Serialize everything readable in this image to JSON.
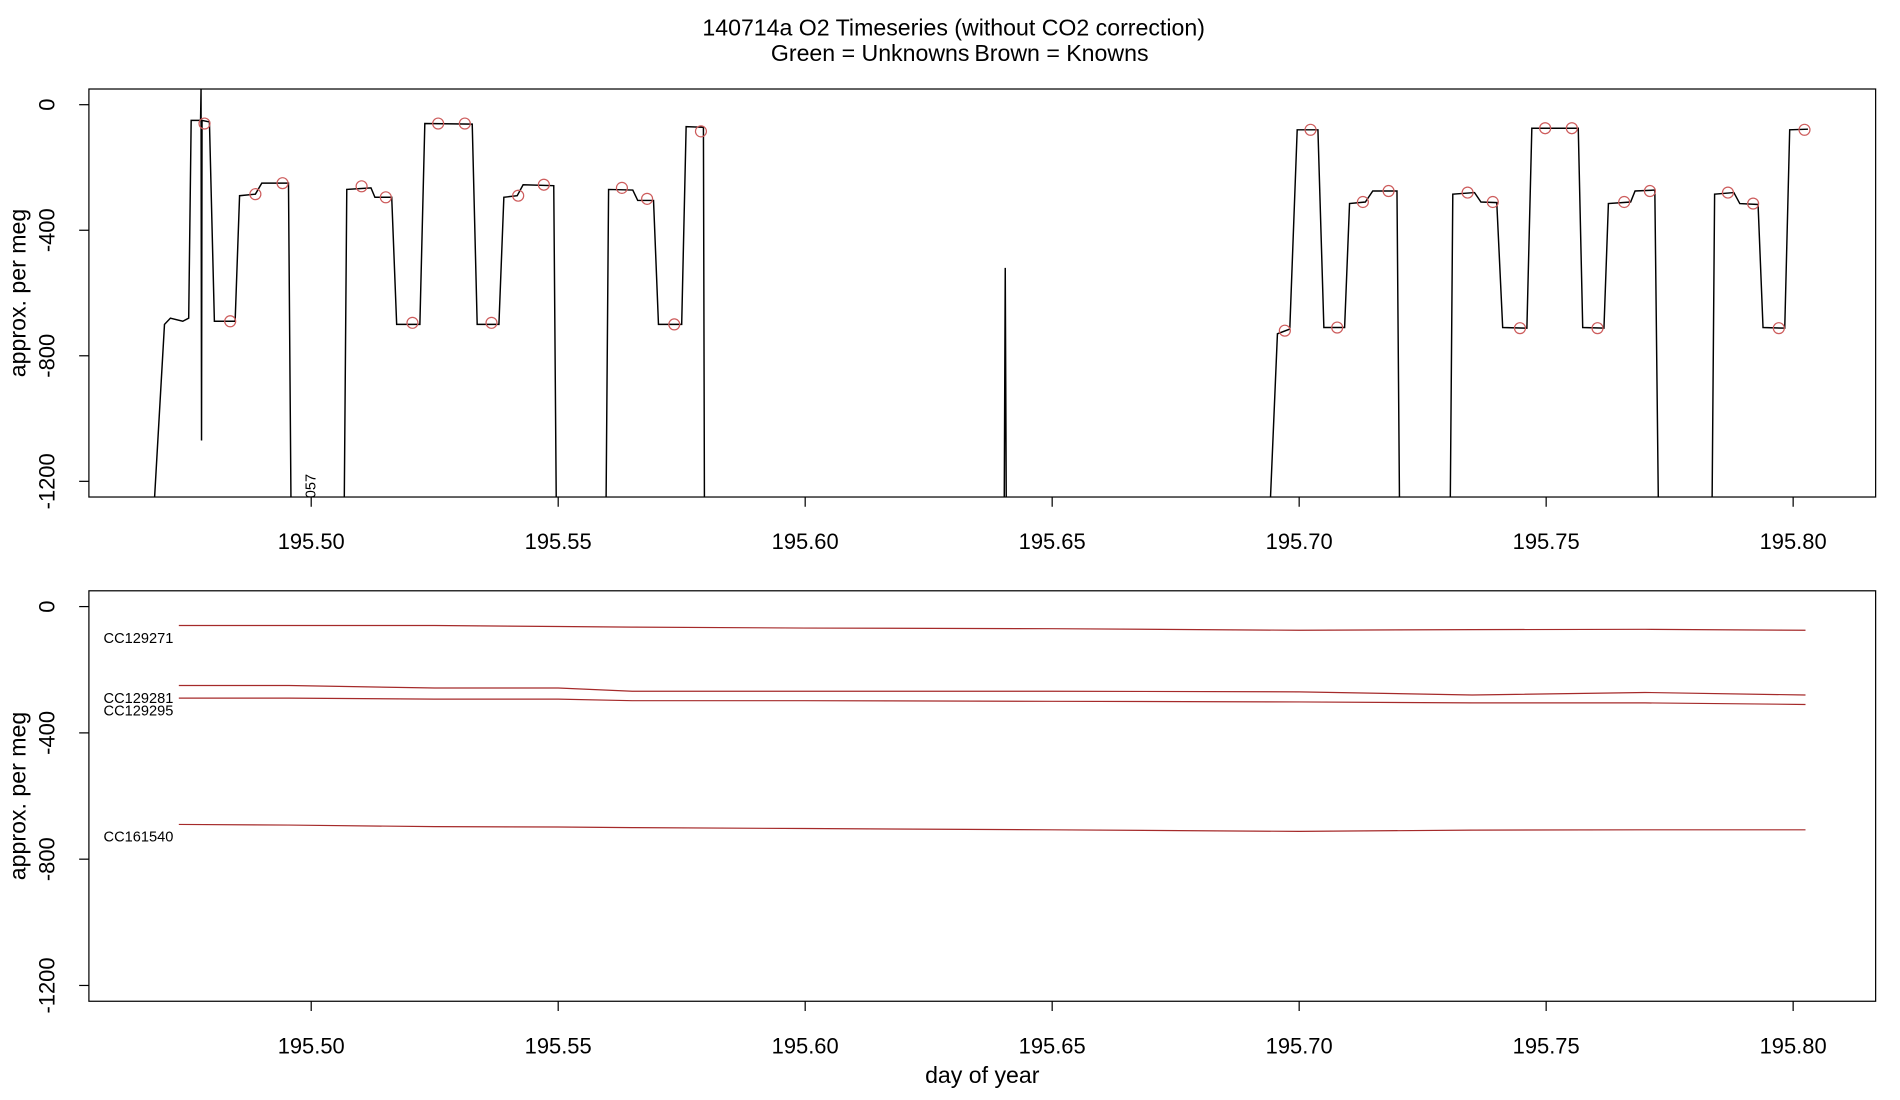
{
  "chart_data": [
    {
      "type": "line",
      "title": "140714a   O2 Timeseries (without CO2 correction)",
      "subtitle": [
        "Green = Unknowns",
        "Brown = Knowns"
      ],
      "subtitle_colors": [
        "#00ee00",
        "#a52a2a"
      ],
      "y_label": "approx. per meg",
      "annotation": "057",
      "annotation_color": "#00ee00",
      "xlim": [
        195.455,
        195.8167
      ],
      "ylim": [
        -1250,
        50
      ],
      "xticks": [
        {
          "value": 195.5,
          "label": "195.50"
        },
        {
          "value": 195.55,
          "label": "195.55"
        },
        {
          "value": 195.6,
          "label": "195.60"
        },
        {
          "value": 195.65,
          "label": "195.65"
        },
        {
          "value": 195.7,
          "label": "195.70"
        },
        {
          "value": 195.75,
          "label": "195.75"
        },
        {
          "value": 195.8,
          "label": "195.80"
        }
      ],
      "yticks": [
        0,
        -400,
        -800,
        -1200
      ],
      "series": [
        {
          "name": "O2",
          "color": "#000000",
          "style": "line",
          "x": [
            195.4683,
            195.4703,
            195.4715,
            195.474,
            195.4752,
            195.4757,
            195.4776,
            195.4777,
            195.4778,
            195.4779,
            195.4794,
            195.4804,
            195.4846,
            195.4855,
            195.4887,
            195.49,
            195.4954,
            195.4959,
            null,
            195.5067,
            195.5072,
            195.5121,
            195.5129,
            195.5163,
            195.5173,
            195.522,
            195.523,
            195.5326,
            195.5336,
            195.538,
            195.539,
            195.5417,
            195.5429,
            195.5491,
            195.5496,
            null,
            195.5597,
            195.5602,
            195.5651,
            195.5661,
            195.5693,
            195.5703,
            195.575,
            195.5759,
            195.5794,
            195.5796,
            null,
            195.6403,
            195.6405,
            195.6407,
            null,
            195.6942,
            195.6956,
            195.6981,
            195.6996,
            195.7038,
            195.705,
            195.7092,
            195.7102,
            195.7134,
            195.7149,
            195.7198,
            195.7203,
            null,
            195.7306,
            195.7311,
            195.7355,
            195.7368,
            195.74,
            195.7412,
            195.7461,
            195.7471,
            195.7565,
            195.7574,
            195.7617,
            195.7626,
            195.7671,
            195.768,
            195.772,
            195.7727,
            null,
            195.7836,
            195.7841,
            195.788,
            195.7892,
            195.7929,
            195.7939,
            195.7983,
            195.7993,
            195.803
          ],
          "values": [
            -1250,
            -700,
            -680,
            -690,
            -680,
            -50,
            -50,
            50,
            -1070,
            -50,
            -55,
            -690,
            -690,
            -290,
            -285,
            -250,
            -250,
            -1250,
            null,
            -1250,
            -270,
            -265,
            -295,
            -295,
            -700,
            -700,
            -60,
            -62,
            -700,
            -700,
            -295,
            -290,
            -255,
            -258,
            -1250,
            null,
            -1250,
            -270,
            -272,
            -305,
            -305,
            -700,
            -700,
            -70,
            -72,
            -1250,
            null,
            -1250,
            -520,
            -1250,
            null,
            -1250,
            -730,
            -715,
            -80,
            -80,
            -710,
            -710,
            -315,
            -310,
            -275,
            -275,
            -1250,
            null,
            -1250,
            -285,
            -280,
            -310,
            -312,
            -710,
            -712,
            -75,
            -75,
            -710,
            -712,
            -315,
            -310,
            -275,
            -272,
            -1250,
            null,
            -1250,
            -285,
            -280,
            -315,
            -318,
            -710,
            -712,
            -80,
            -78
          ]
        },
        {
          "name": "Knowns",
          "color": "#cd5c5c",
          "style": "points",
          "x": [
            195.4784,
            195.4836,
            195.4887,
            195.4942,
            195.5102,
            195.5151,
            195.5205,
            195.5257,
            195.5311,
            195.5365,
            195.5419,
            195.5471,
            195.5629,
            195.568,
            195.5735,
            195.5789,
            195.6971,
            195.7023,
            195.7077,
            195.7129,
            195.7181,
            195.7341,
            195.7392,
            195.7447,
            195.7498,
            195.7552,
            195.7604,
            195.7658,
            195.771,
            195.7868,
            195.7919,
            195.7971,
            195.8023
          ],
          "values": [
            -60,
            -690,
            -285,
            -250,
            -260,
            -295,
            -695,
            -60,
            -60,
            -695,
            -290,
            -255,
            -265,
            -300,
            -700,
            -85,
            -720,
            -80,
            -710,
            -310,
            -275,
            -280,
            -310,
            -712,
            -75,
            -75,
            -712,
            -310,
            -275,
            -280,
            -315,
            -712,
            -80
          ]
        }
      ]
    },
    {
      "type": "line",
      "y_label": "approx. per meg",
      "x_label": "day of year",
      "xlim": [
        195.455,
        195.8167
      ],
      "ylim": [
        -1250,
        50
      ],
      "xticks": [
        {
          "value": 195.5,
          "label": "195.50"
        },
        {
          "value": 195.55,
          "label": "195.55"
        },
        {
          "value": 195.6,
          "label": "195.60"
        },
        {
          "value": 195.65,
          "label": "195.65"
        },
        {
          "value": 195.7,
          "label": "195.70"
        },
        {
          "value": 195.75,
          "label": "195.75"
        },
        {
          "value": 195.8,
          "label": "195.80"
        }
      ],
      "yticks": [
        0,
        -400,
        -800,
        -1200
      ],
      "x": [
        195.4732,
        195.4955,
        195.525,
        195.55,
        195.565,
        195.6,
        195.65,
        195.7,
        195.735,
        195.77,
        195.8025
      ],
      "series": [
        {
          "name": "CC129271",
          "color": "#a52a2a",
          "values": [
            -60,
            -60,
            -60,
            -63,
            -65,
            -68,
            -70,
            -75,
            -73,
            -72,
            -75
          ]
        },
        {
          "name": "CC129281",
          "color": "#a52a2a",
          "values": [
            -250,
            -250,
            -258,
            -258,
            -268,
            -268,
            -268,
            -270,
            -280,
            -272,
            -280
          ]
        },
        {
          "name": "CC129295",
          "color": "#a52a2a",
          "values": [
            -290,
            -290,
            -293,
            -293,
            -298,
            -298,
            -300,
            -302,
            -305,
            -305,
            -310
          ]
        },
        {
          "name": "CC161540",
          "color": "#a52a2a",
          "values": [
            -690,
            -692,
            -697,
            -698,
            -700,
            -703,
            -707,
            -712,
            -708,
            -707,
            -707
          ]
        }
      ]
    }
  ]
}
